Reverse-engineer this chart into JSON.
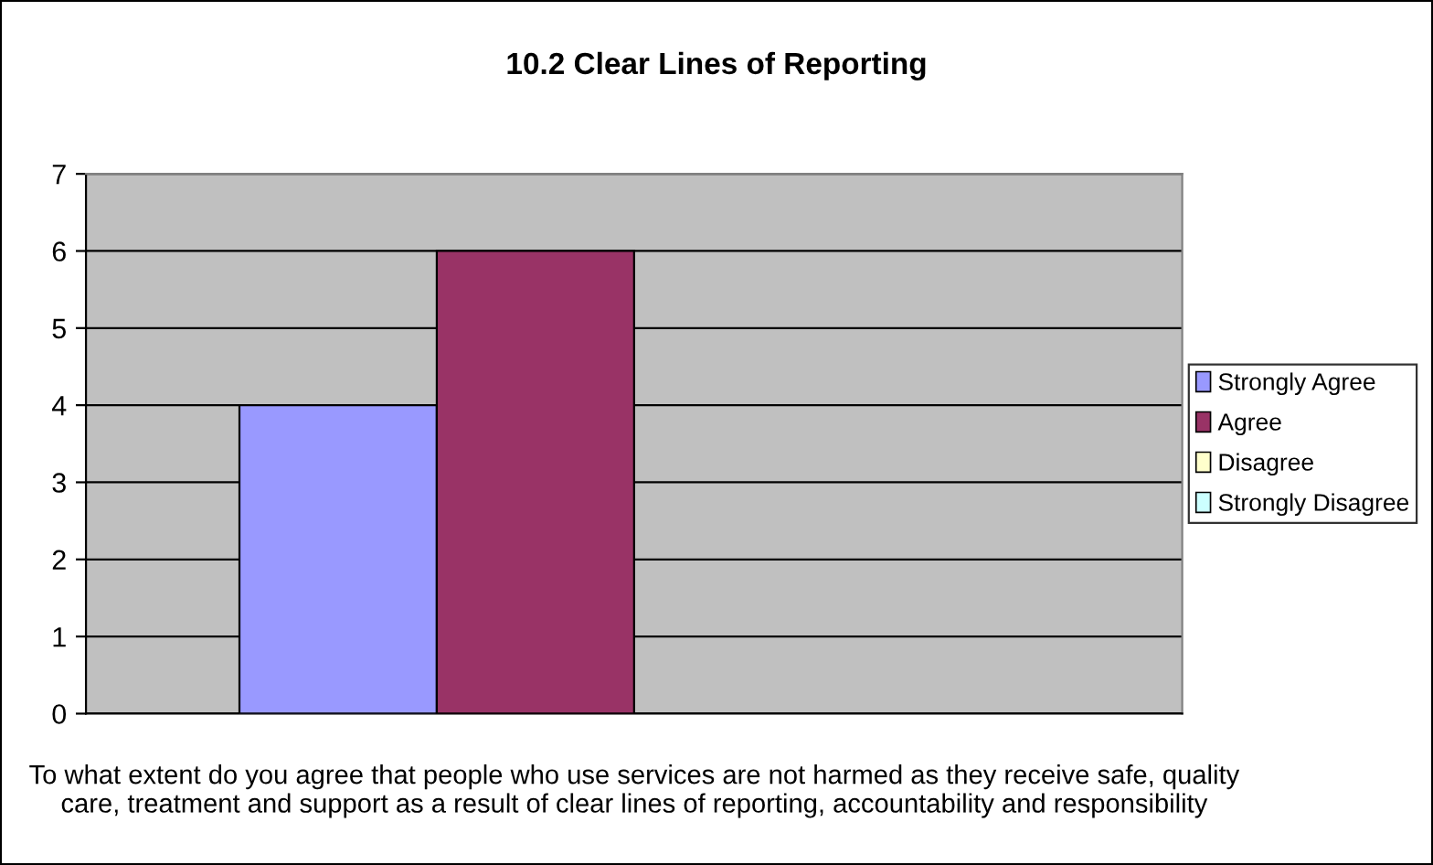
{
  "chart_data": {
    "type": "bar",
    "title": "10.2 Clear Lines of Reporting",
    "categories": [
      "To what extent do you agree that people who use services are not harmed as they receive safe, quality care, treatment and support as a result of clear lines of reporting, accountability and responsibility"
    ],
    "series": [
      {
        "name": "Strongly Agree",
        "color": "#9999ff",
        "values": [
          4
        ]
      },
      {
        "name": "Agree",
        "color": "#993366",
        "values": [
          6
        ]
      },
      {
        "name": "Disagree",
        "color": "#ffffcc",
        "values": [
          0
        ]
      },
      {
        "name": "Strongly Disagree",
        "color": "#ccffff",
        "values": [
          0
        ]
      }
    ],
    "ylim": [
      0,
      7
    ],
    "yticks": [
      0,
      1,
      2,
      3,
      4,
      5,
      6,
      7
    ],
    "grid": "y",
    "legend": "right"
  }
}
